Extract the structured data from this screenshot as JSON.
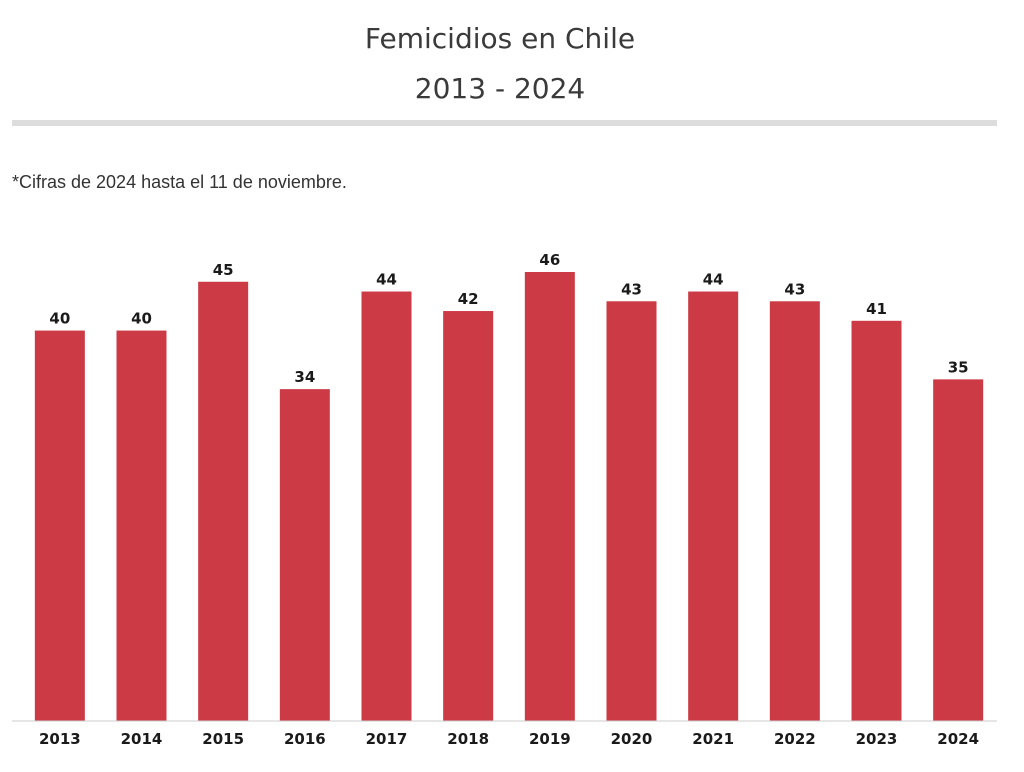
{
  "header": {
    "title_line1": "Femicidios en Chile",
    "title_line2": "2013 - 2024",
    "note": "*Cifras de 2024 hasta el 11 de noviembre."
  },
  "chart_data": {
    "type": "bar",
    "categories": [
      "2013",
      "2014",
      "2015",
      "2016",
      "2017",
      "2018",
      "2019",
      "2020",
      "2021",
      "2022",
      "2023",
      "2024"
    ],
    "values": [
      40,
      40,
      45,
      34,
      44,
      42,
      46,
      43,
      44,
      43,
      41,
      35
    ],
    "bar_color": "#cc3a46",
    "ylim": [
      0,
      46
    ],
    "grid": false,
    "legend": "none",
    "xlabel": "",
    "ylabel": ""
  }
}
